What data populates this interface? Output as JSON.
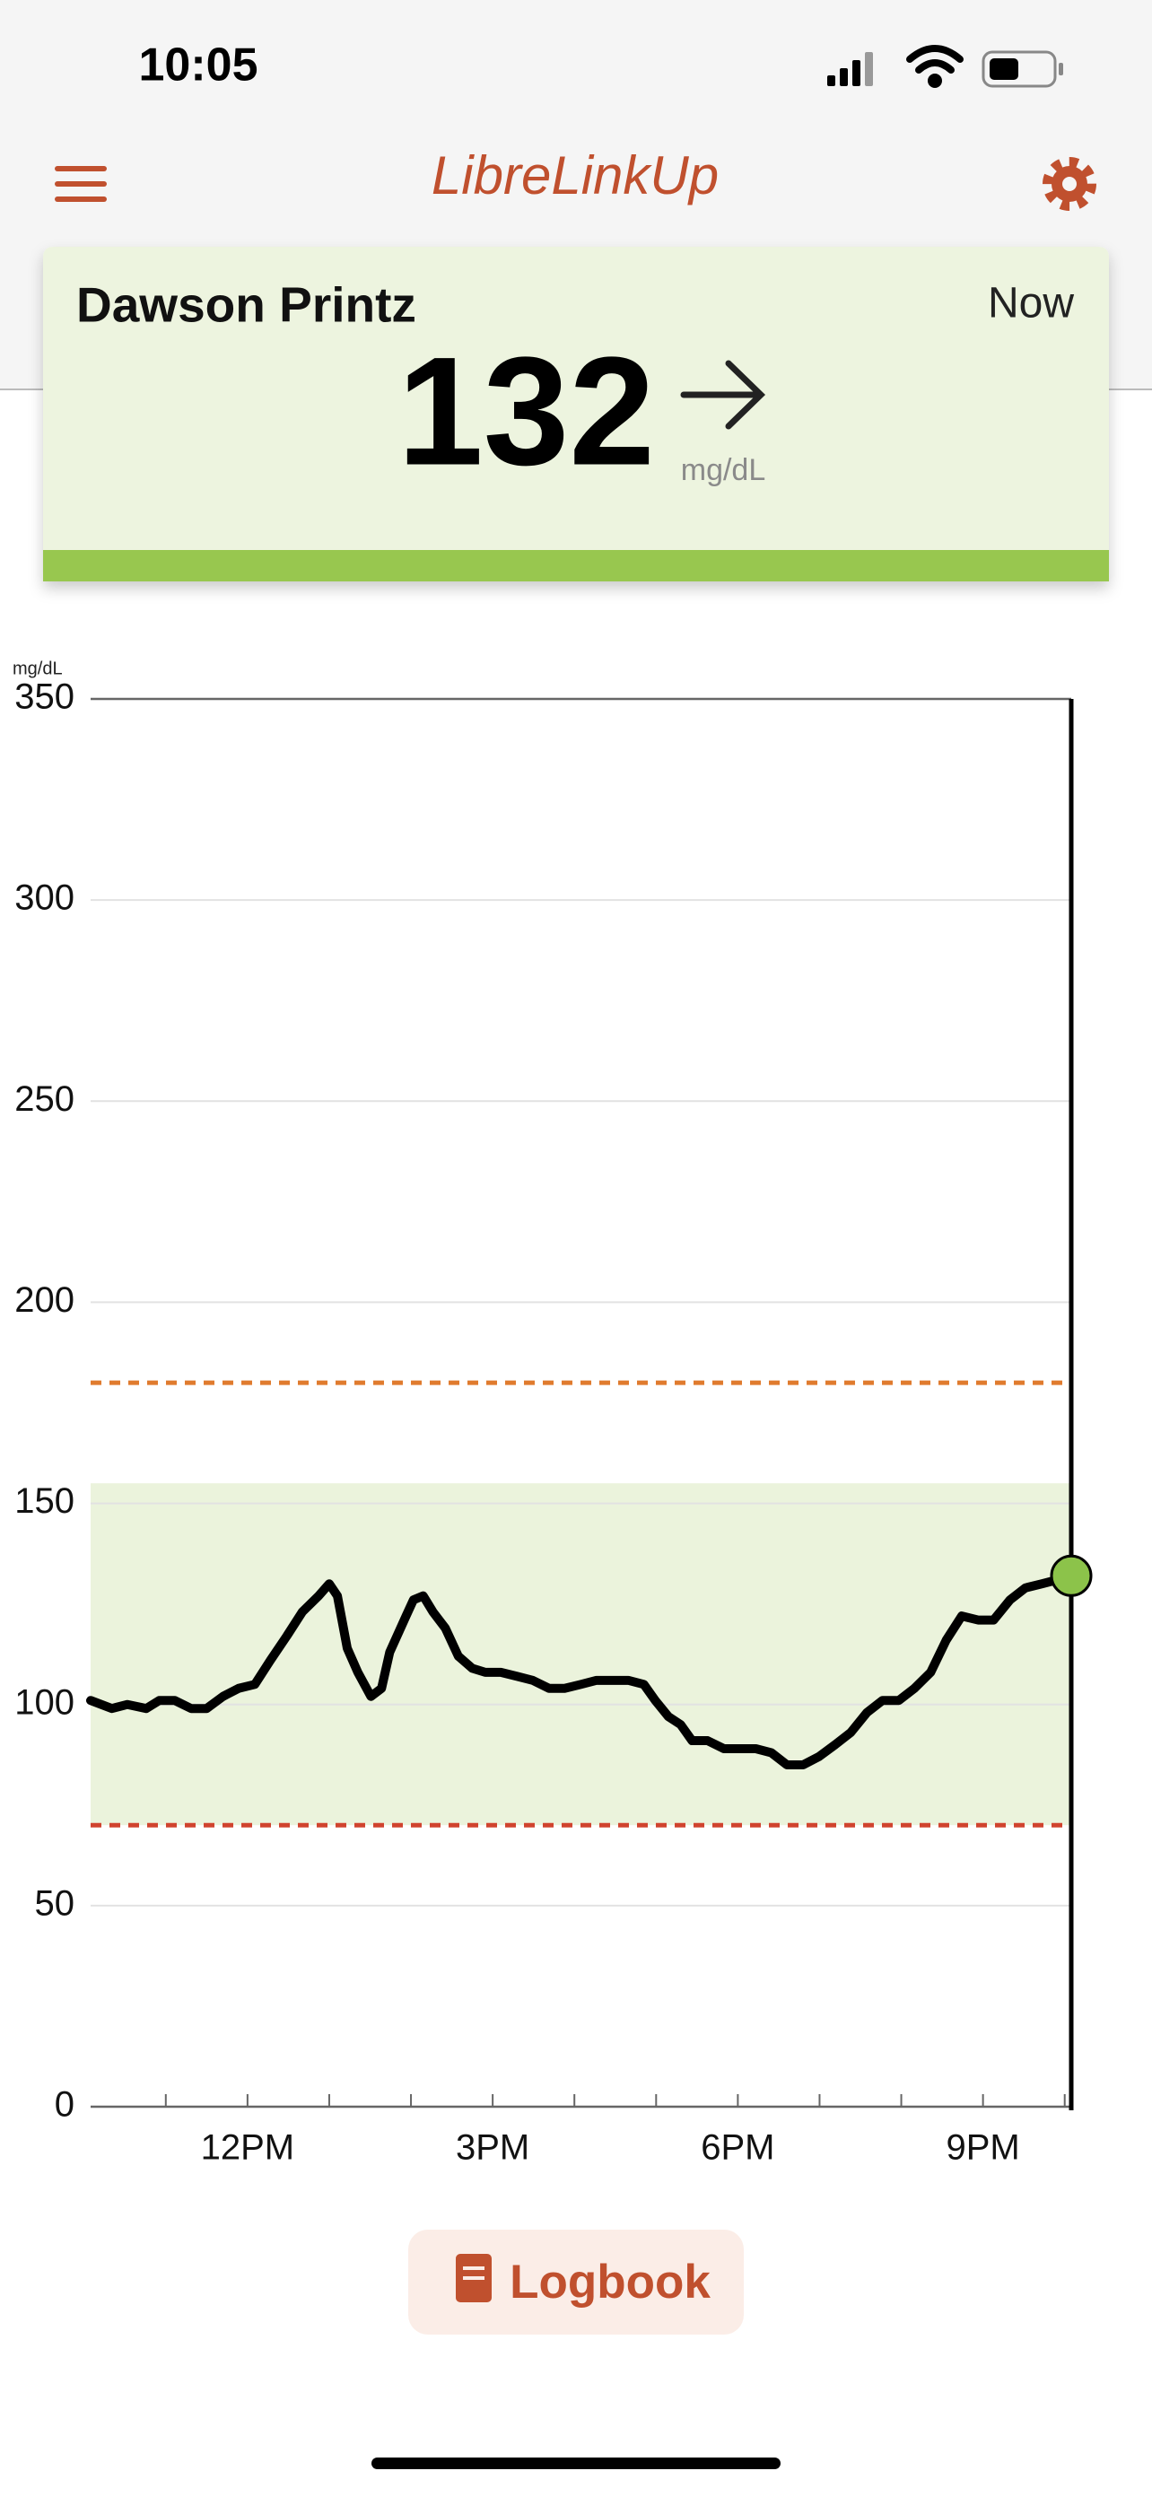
{
  "status_bar": {
    "time": "10:05"
  },
  "header": {
    "title": "LibreLinkUp"
  },
  "reading": {
    "name": "Dawson Printz",
    "timestamp": "Now",
    "value": 132,
    "unit": "mg/dL"
  },
  "chart_data": {
    "type": "line",
    "y_unit_label": "mg/dL",
    "color": "#000000",
    "x": [
      10.08,
      10.34,
      10.53,
      10.76,
      10.92,
      11.11,
      11.31,
      11.5,
      11.7,
      11.89,
      12.09,
      12.28,
      12.48,
      12.67,
      12.87,
      13.0,
      13.1,
      13.22,
      13.35,
      13.51,
      13.64,
      13.74,
      13.94,
      14.03,
      14.15,
      14.27,
      14.42,
      14.58,
      14.75,
      14.91,
      15.1,
      15.3,
      15.49,
      15.69,
      15.88,
      16.08,
      16.27,
      16.46,
      16.66,
      16.85,
      16.99,
      17.15,
      17.3,
      17.44,
      17.63,
      17.83,
      18.02,
      18.22,
      18.41,
      18.6,
      18.8,
      18.99,
      19.19,
      19.38,
      19.58,
      19.77,
      19.97,
      20.16,
      20.36,
      20.55,
      20.74,
      20.94,
      21.13,
      21.33,
      21.52,
      21.72,
      21.91,
      22.08
    ],
    "values": [
      101,
      99,
      100,
      99,
      101,
      101,
      99,
      99,
      102,
      104,
      105,
      111,
      117,
      123,
      127,
      130,
      127,
      114,
      108,
      102,
      104,
      113,
      122,
      126,
      127,
      123,
      119,
      112,
      109,
      108,
      108,
      107,
      106,
      104,
      104,
      105,
      106,
      106,
      106,
      105,
      101,
      97,
      95,
      91,
      91,
      89,
      89,
      89,
      88,
      85,
      85,
      87,
      90,
      93,
      98,
      101,
      101,
      104,
      108,
      116,
      122,
      121,
      121,
      126,
      129,
      130,
      131,
      132
    ],
    "xlim": [
      10.08,
      22.08
    ],
    "xticks": [
      {
        "value": 12,
        "label": "12PM"
      },
      {
        "value": 15,
        "label": "3PM"
      },
      {
        "value": 18,
        "label": "6PM"
      },
      {
        "value": 21,
        "label": "9PM"
      }
    ],
    "xminorticks": [
      11,
      13,
      14,
      16,
      17,
      19,
      20,
      22
    ],
    "ylim": [
      0,
      350
    ],
    "yticks": [
      0,
      50,
      100,
      150,
      200,
      250,
      300,
      350
    ],
    "grid": true,
    "target_range": [
      70,
      155
    ],
    "target_range_color": "#ebf3dc",
    "high_threshold": 180,
    "high_color": "#e07b2e",
    "low_threshold": 70,
    "low_color": "#d0432e",
    "marker_color": "#8cc34a"
  },
  "logbook_button": {
    "label": "Logbook"
  }
}
